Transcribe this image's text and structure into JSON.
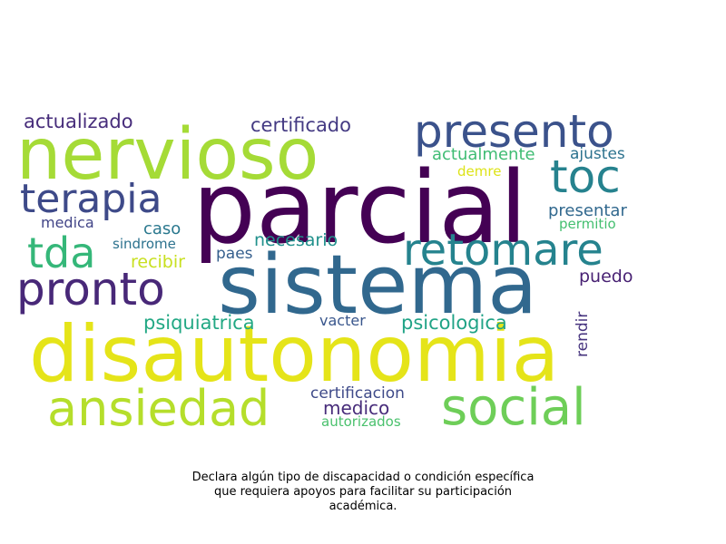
{
  "words": [
    {
      "text": "nervioso",
      "color": "#a5db36"
    },
    {
      "text": "parcial",
      "color": "#440154"
    },
    {
      "text": "sistema",
      "color": "#31688e"
    },
    {
      "text": "disautonomia",
      "color": "#e5e419"
    },
    {
      "text": "presento",
      "color": "#3b528b"
    },
    {
      "text": "toc",
      "color": "#26828e"
    },
    {
      "text": "terapia",
      "color": "#3e4a89"
    },
    {
      "text": "retomare",
      "color": "#25838e"
    },
    {
      "text": "tda",
      "color": "#35b779"
    },
    {
      "text": "pronto",
      "color": "#482878"
    },
    {
      "text": "ansiedad",
      "color": "#b5de2b"
    },
    {
      "text": "social",
      "color": "#6ece58"
    },
    {
      "text": "actualizado",
      "color": "#472d7b"
    },
    {
      "text": "certificado",
      "color": "#443a83"
    },
    {
      "text": "actualmente",
      "color": "#3fbc73"
    },
    {
      "text": "ajustes",
      "color": "#2c728e"
    },
    {
      "text": "demre",
      "color": "#dde318"
    },
    {
      "text": "presentar",
      "color": "#31688e"
    },
    {
      "text": "permitio",
      "color": "#44bf70"
    },
    {
      "text": "medica",
      "color": "#414487"
    },
    {
      "text": "caso",
      "color": "#2a788e"
    },
    {
      "text": "necesario",
      "color": "#21918c"
    },
    {
      "text": "sindrome",
      "color": "#2c728e"
    },
    {
      "text": "paes",
      "color": "#355f8d"
    },
    {
      "text": "recibir",
      "color": "#c8e020"
    },
    {
      "text": "puedo",
      "color": "#482173"
    },
    {
      "text": "psiquiatrica",
      "color": "#22a884"
    },
    {
      "text": "vacter",
      "color": "#39568c"
    },
    {
      "text": "psicologica",
      "color": "#20a386"
    },
    {
      "text": "rendir",
      "color": "#46337e"
    },
    {
      "text": "certificacion",
      "color": "#3e4a89"
    },
    {
      "text": "medico",
      "color": "#472c7a"
    },
    {
      "text": "autorizados",
      "color": "#4ac16d"
    }
  ],
  "caption": {
    "line1": "Declara algún tipo de discapacidad o condición específica",
    "line2": "que requiera apoyos para facilitar su participación",
    "line3": "académica."
  }
}
